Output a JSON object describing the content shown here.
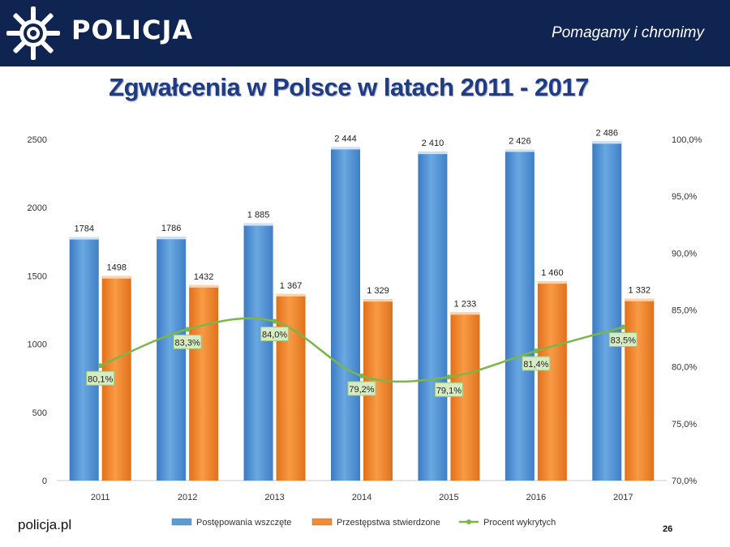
{
  "header": {
    "brand": "POLICJA",
    "motto": "Pomagamy i chronimy",
    "logo_icon": "police-star-icon",
    "background_color": "#0f2451"
  },
  "title": "Zgwałcenia w Polsce w latach 2011 - 2017",
  "footer": {
    "site": "policja.pl",
    "page_number": "26"
  },
  "chart_data": {
    "type": "bar",
    "categories": [
      "2011",
      "2012",
      "2013",
      "2014",
      "2015",
      "2016",
      "2017"
    ],
    "series": [
      {
        "name": "Postępowania wszczęte",
        "chart": "bar",
        "axis": "left",
        "color": "#5b9bd5",
        "values": [
          1784,
          1786,
          1885,
          2444,
          2410,
          2426,
          2486
        ],
        "labels": [
          "1784",
          "1786",
          "1 885",
          "2 444",
          "2 410",
          "2 426",
          "2 486"
        ]
      },
      {
        "name": "Przestępstwa stwierdzone",
        "chart": "bar",
        "axis": "left",
        "color": "#f28a30",
        "values": [
          1498,
          1432,
          1367,
          1329,
          1233,
          1460,
          1332
        ],
        "labels": [
          "1498",
          "1432",
          "1 367",
          "1 329",
          "1 233",
          "1 460",
          "1 332"
        ]
      },
      {
        "name": "Procent wykrytych",
        "chart": "line",
        "axis": "right",
        "color": "#7ab648",
        "values": [
          80.1,
          83.3,
          84.0,
          79.2,
          79.1,
          81.4,
          83.5
        ],
        "labels": [
          "80,1%",
          "83,3%",
          "84,0%",
          "79,2%",
          "79,1%",
          "81,4%",
          "83,5%"
        ]
      }
    ],
    "ylim_left": [
      0,
      2500
    ],
    "yticks_left": [
      "0",
      "500",
      "1000",
      "1500",
      "2000",
      "2500"
    ],
    "ylim_right": [
      70,
      100
    ],
    "yticks_right": [
      "70,0%",
      "75,0%",
      "80,0%",
      "85,0%",
      "90,0%",
      "95,0%",
      "100,0%"
    ],
    "grid": false,
    "legend_position": "bottom"
  }
}
